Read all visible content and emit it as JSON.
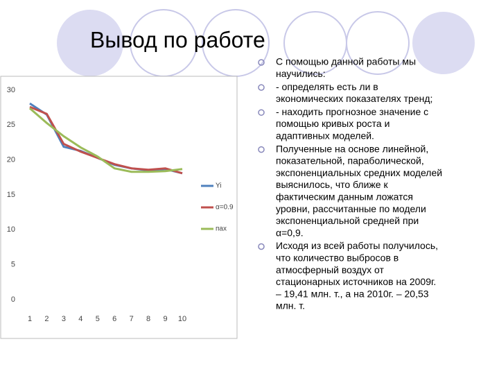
{
  "title": "Вывод по работе",
  "bullets": [
    [
      "С помощью данной работы мы",
      "научились:"
    ],
    [
      "- определять есть ли в",
      "экономических показателях тренд;"
    ],
    [
      "-  находить прогнозное значение с",
      "помощью кривых роста и",
      "адаптивных моделей."
    ],
    [
      "Полученные на основе линейной,",
      "показательной, параболической,",
      "экспоненциальных средних моделей",
      "выяснилось, что ближе к",
      "фактическим данным ложатся",
      "уровни, рассчитанные по модели",
      "экспоненциальной средней при",
      "α=0,9."
    ],
    [
      "Исходя из всей работы получилось,",
      "что количество выбросов в",
      "атмосферный воздух от",
      "стационарных источников на 2009г.",
      "– 19,41 млн. т., а на 2010г. – 20,53",
      "млн. т."
    ]
  ],
  "chart_data": {
    "type": "line",
    "categories": [
      "1",
      "2",
      "3",
      "4",
      "5",
      "6",
      "7",
      "8",
      "9",
      "10"
    ],
    "series": [
      {
        "name": "Yi",
        "color": "#4f81bd",
        "values": [
          28.1,
          26.5,
          21.9,
          21.3,
          20.3,
          19.3,
          18.8,
          18.5,
          18.7,
          18.1
        ]
      },
      {
        "name": "α=0.9",
        "color": "#c0504d",
        "values": [
          27.6,
          26.6,
          22.3,
          21.2,
          20.3,
          19.4,
          18.8,
          18.6,
          18.8,
          18.1
        ]
      },
      {
        "name": "пах",
        "color": "#9bbb59",
        "values": [
          27.4,
          25.3,
          23.4,
          21.8,
          20.5,
          18.8,
          18.3,
          18.3,
          18.4,
          18.7
        ]
      }
    ],
    "ylim": [
      0,
      30
    ],
    "yticks": [
      0,
      5,
      10,
      15,
      20,
      25,
      30
    ],
    "grid": false
  }
}
